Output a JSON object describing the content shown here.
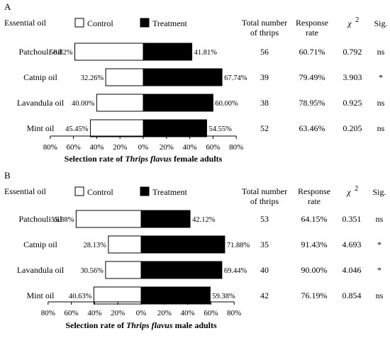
{
  "chart_data": [
    {
      "type": "bar",
      "panel_label": "A",
      "header_label": "Essential oil",
      "legend": [
        {
          "name": "Control",
          "color": "#ffffff"
        },
        {
          "name": "Treatment",
          "color": "#000000"
        }
      ],
      "columns": {
        "total": [
          "Total number",
          "of thrips"
        ],
        "response": [
          "Response",
          "rate"
        ],
        "chi": "χ",
        "chi_sup": "2",
        "sig": "Sig."
      },
      "categories": [
        "Patchouli oil",
        "Catnip oil",
        "Lavandula oil",
        "Mint oil"
      ],
      "series": [
        {
          "name": "Control",
          "values": [
            58.82,
            32.26,
            40.0,
            45.45
          ],
          "labels": [
            "58.82%",
            "32.26%",
            "40.00%",
            "45.45%"
          ]
        },
        {
          "name": "Treatment",
          "values": [
            41.81,
            67.74,
            60.0,
            54.55
          ],
          "labels": [
            "41.81%",
            "67.74%",
            "60.00%",
            "54.55%"
          ]
        }
      ],
      "totals": [
        "56",
        "39",
        "38",
        "52"
      ],
      "response_rates": [
        "60.71%",
        "79.49%",
        "78.95%",
        "63.46%"
      ],
      "chi_values": [
        "0.792",
        "3.903",
        "0.925",
        "0.205"
      ],
      "significance": [
        "ns",
        "*",
        "ns",
        "ns"
      ],
      "x_ticks": [
        "80%",
        "60%",
        "40%",
        "20%",
        "0%",
        "20%",
        "40%",
        "60%",
        "80%"
      ],
      "xlim": [
        -80,
        80
      ],
      "xlabel": {
        "pre": "Selection rate of ",
        "italic": "Thrips flavus",
        "post": " female adults"
      }
    },
    {
      "type": "bar",
      "panel_label": "B",
      "header_label": "Essential oil",
      "legend": [
        {
          "name": "Control",
          "color": "#ffffff"
        },
        {
          "name": "Treatment",
          "color": "#000000"
        }
      ],
      "columns": {
        "total": [
          "Total number",
          "of thrips"
        ],
        "response": [
          "Response",
          "rate"
        ],
        "chi": "χ",
        "chi_sup": "2",
        "sig": "Sig."
      },
      "categories": [
        "Patchouli oil",
        "Catnip oil",
        "Lavandula oil",
        "Mint oil"
      ],
      "series": [
        {
          "name": "Control",
          "values": [
            55.88,
            28.13,
            30.56,
            40.63
          ],
          "labels": [
            "55.88%",
            "28.13%",
            "30.56%",
            "40.63%"
          ]
        },
        {
          "name": "Treatment",
          "values": [
            42.12,
            71.88,
            69.44,
            59.38
          ],
          "labels": [
            "42.12%",
            "71.88%",
            "69.44%",
            "59.38%"
          ]
        }
      ],
      "totals": [
        "53",
        "35",
        "40",
        "42"
      ],
      "response_rates": [
        "64.15%",
        "91.43%",
        "90.00%",
        "76.19%"
      ],
      "chi_values": [
        "0.351",
        "4.693",
        "4.046",
        "0.854"
      ],
      "significance": [
        "ns",
        "*",
        "*",
        "ns"
      ],
      "x_ticks": [
        "80%",
        "60%",
        "40%",
        "20%",
        "0%",
        "20%",
        "40%",
        "60%",
        "80%"
      ],
      "xlim": [
        -80,
        80
      ],
      "xlabel": {
        "pre": "Selection rate of ",
        "italic": "Thrips flavus",
        "post": " male adults"
      }
    }
  ]
}
